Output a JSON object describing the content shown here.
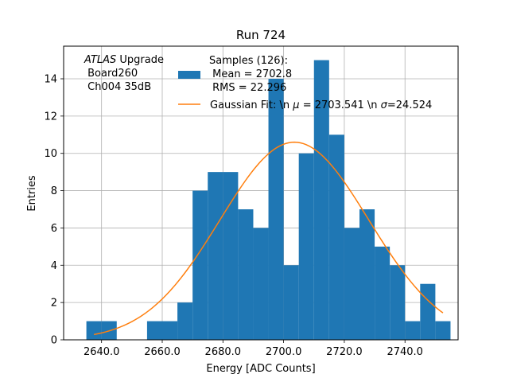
{
  "chart_data": {
    "type": "bar",
    "title": "Run 724",
    "xlabel": "Energy [ADC Counts]",
    "ylabel": "Entries",
    "xlim": [
      2627.5,
      2757.5
    ],
    "ylim": [
      0,
      15.75
    ],
    "grid": true,
    "x_ticks": [
      2640,
      2660,
      2680,
      2700,
      2720,
      2740
    ],
    "x_tick_labels": [
      "2640.0",
      "2660.0",
      "2680.0",
      "2700.0",
      "2720.0",
      "2740.0"
    ],
    "y_ticks": [
      0,
      2,
      4,
      6,
      8,
      10,
      12,
      14
    ],
    "y_tick_labels": [
      "0",
      "2",
      "4",
      "6",
      "8",
      "10",
      "12",
      "14"
    ],
    "bin_edges": [
      2635,
      2640,
      2645,
      2650,
      2655,
      2660,
      2665,
      2670,
      2675,
      2680,
      2685,
      2690,
      2695,
      2700,
      2705,
      2710,
      2715,
      2720,
      2725,
      2730,
      2735,
      2740,
      2745,
      2750,
      2755
    ],
    "histogram_bins": [
      {
        "x0": 2635,
        "x1": 2640,
        "count": 1
      },
      {
        "x0": 2640,
        "x1": 2645,
        "count": 1
      },
      {
        "x0": 2645,
        "x1": 2650,
        "count": 0
      },
      {
        "x0": 2650,
        "x1": 2655,
        "count": 0
      },
      {
        "x0": 2655,
        "x1": 2660,
        "count": 1
      },
      {
        "x0": 2660,
        "x1": 2665,
        "count": 1
      },
      {
        "x0": 2665,
        "x1": 2670,
        "count": 2
      },
      {
        "x0": 2670,
        "x1": 2675,
        "count": 8
      },
      {
        "x0": 2675,
        "x1": 2680,
        "count": 9
      },
      {
        "x0": 2680,
        "x1": 2685,
        "count": 9
      },
      {
        "x0": 2685,
        "x1": 2690,
        "count": 7
      },
      {
        "x0": 2690,
        "x1": 2695,
        "count": 6
      },
      {
        "x0": 2695,
        "x1": 2700,
        "count": 14
      },
      {
        "x0": 2700,
        "x1": 2705,
        "count": 4
      },
      {
        "x0": 2705,
        "x1": 2710,
        "count": 10
      },
      {
        "x0": 2710,
        "x1": 2715,
        "count": 15
      },
      {
        "x0": 2715,
        "x1": 2720,
        "count": 11
      },
      {
        "x0": 2720,
        "x1": 2725,
        "count": 6
      },
      {
        "x0": 2725,
        "x1": 2730,
        "count": 7
      },
      {
        "x0": 2730,
        "x1": 2735,
        "count": 5
      },
      {
        "x0": 2735,
        "x1": 2740,
        "count": 4
      },
      {
        "x0": 2740,
        "x1": 2745,
        "count": 1
      },
      {
        "x0": 2745,
        "x1": 2750,
        "count": 3
      },
      {
        "x0": 2750,
        "x1": 2755,
        "count": 1
      }
    ],
    "fit": {
      "type": "gaussian",
      "mu": 2703.541,
      "sigma": 24.524,
      "peak": 10.6,
      "x_range": [
        2637.5,
        2752.5
      ]
    },
    "bar_color": "#1f77b4",
    "fit_color": "#ff7f0e",
    "annotation": {
      "italic": "ATLAS",
      "rest": " Upgrade",
      "line2": " Board260",
      "line3": " Ch004 35dB"
    },
    "legend": {
      "placement": "top-center",
      "hist_label_line1": "Samples (126):",
      "hist_label_line2": " Mean = 2702.8",
      "hist_label_line3": " RMS = 22.296",
      "fit_label_pre_mu": "Gaussian Fit: \\n ",
      "fit_label_mu": "μ",
      "fit_label_mid": " = 2703.541 \\n ",
      "fit_label_sigma": "σ",
      "fit_label_post": "=24.524"
    }
  }
}
